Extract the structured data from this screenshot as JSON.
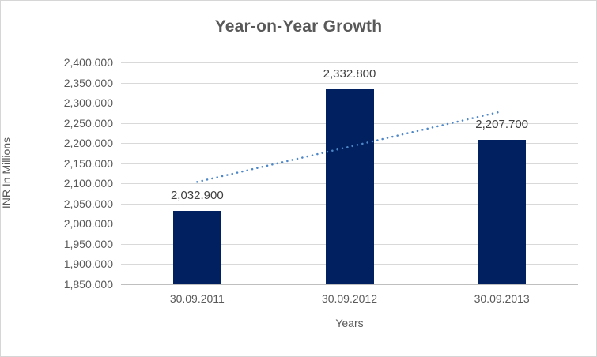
{
  "frame": {
    "background": "#ffffff",
    "border_color": "#d6d6d6"
  },
  "chart_data": {
    "type": "bar",
    "title": "Year-on-Year Growth",
    "xlabel": "Years",
    "ylabel": "INR In Millions",
    "categories": [
      "30.09.2011",
      "30.09.2012",
      "30.09.2013"
    ],
    "values": [
      2032.9,
      2332.8,
      2207.7
    ],
    "data_labels": [
      "2,032.900",
      "2,332.800",
      "2,207.700"
    ],
    "ylim": [
      1850,
      2400
    ],
    "ytick_step": 50,
    "ytick_labels": [
      "2,400.000",
      "2,350.000",
      "2,300.000",
      "2,250.000",
      "2,200.000",
      "2,150.000",
      "2,100.000",
      "2,050.000",
      "2,000.000",
      "1,950.000",
      "1,900.000",
      "1,850.000"
    ],
    "grid": true,
    "legend": "none",
    "colors": {
      "bar": "#002060",
      "trendline": "#4e87c8",
      "gridline": "#d9d9d9",
      "axisline": "#bfbfbf",
      "title_text": "#595959",
      "axis_text": "#595959",
      "data_label_text": "#404040"
    },
    "trendline": {
      "type": "linear",
      "style": "dotted"
    }
  }
}
